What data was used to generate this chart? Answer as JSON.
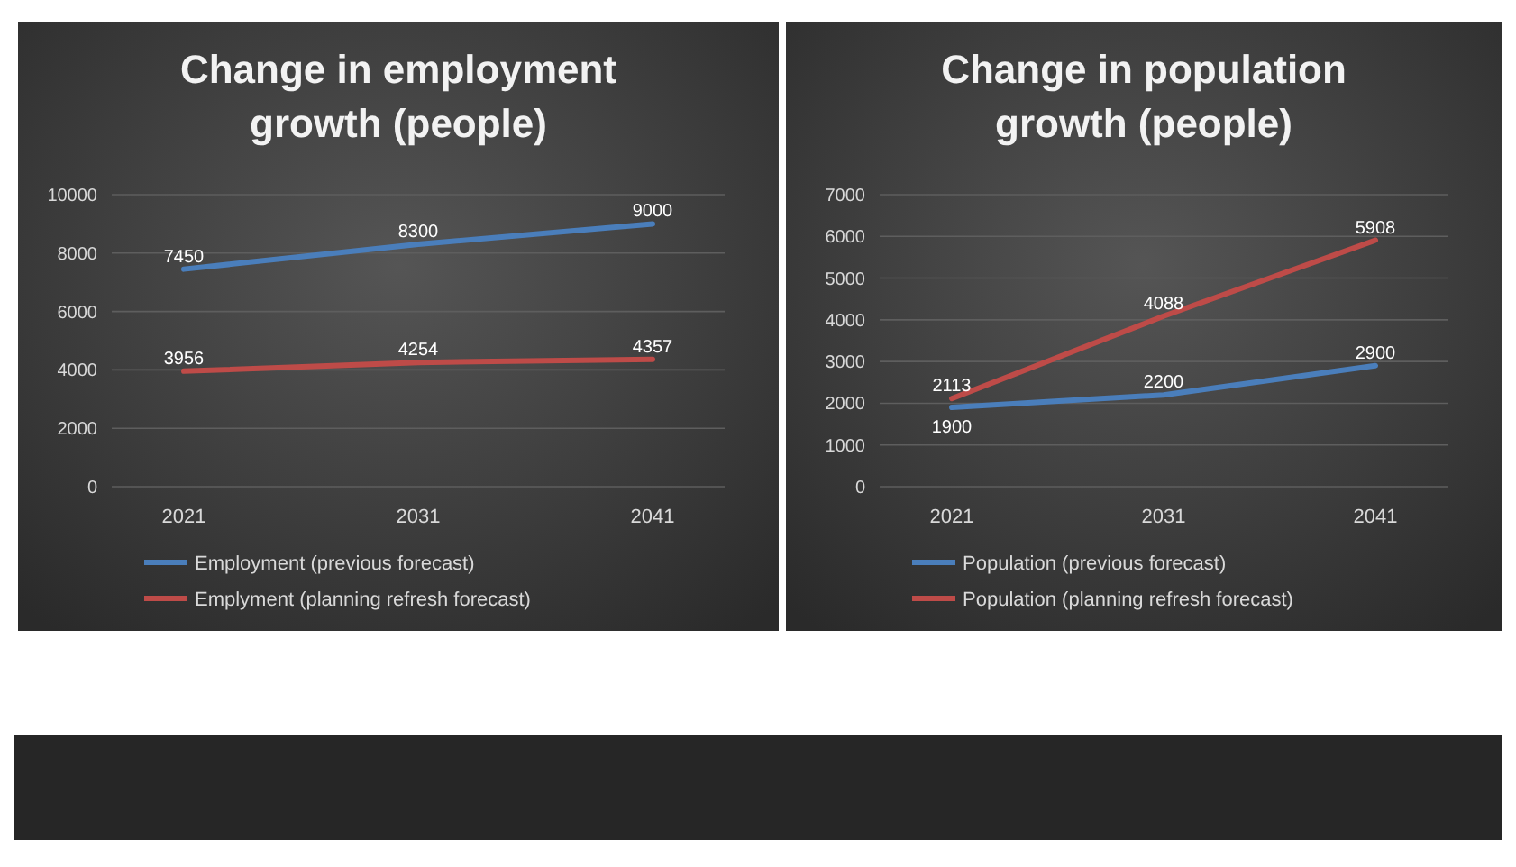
{
  "chart_data": [
    {
      "type": "line",
      "title": "Change in employment growth (people)",
      "categories": [
        "2021",
        "2031",
        "2041"
      ],
      "series": [
        {
          "name": "Employment (previous forecast)",
          "color": "#4a7ebb",
          "values": [
            7450,
            8300,
            9000
          ]
        },
        {
          "name": "Emplyment  (planning refresh forecast)",
          "color": "#be4b48",
          "values": [
            3956,
            4254,
            4357
          ]
        }
      ],
      "ylim": [
        0,
        10000
      ],
      "yticks": [
        0,
        2000,
        4000,
        6000,
        8000,
        10000
      ],
      "grid": "y",
      "legend": "bottom",
      "data_labels": true
    },
    {
      "type": "line",
      "title": "Change in population growth (people)",
      "categories": [
        "2021",
        "2031",
        "2041"
      ],
      "series": [
        {
          "name": "Population (previous forecast)",
          "color": "#4a7ebb",
          "values": [
            1900,
            2200,
            2900
          ]
        },
        {
          "name": "Population (planning refresh forecast)",
          "color": "#be4b48",
          "values": [
            2113,
            4088,
            5908
          ]
        }
      ],
      "ylim": [
        0,
        7000
      ],
      "yticks": [
        0,
        1000,
        2000,
        3000,
        4000,
        5000,
        6000,
        7000
      ],
      "grid": "y",
      "legend": "bottom",
      "data_labels": true
    }
  ]
}
